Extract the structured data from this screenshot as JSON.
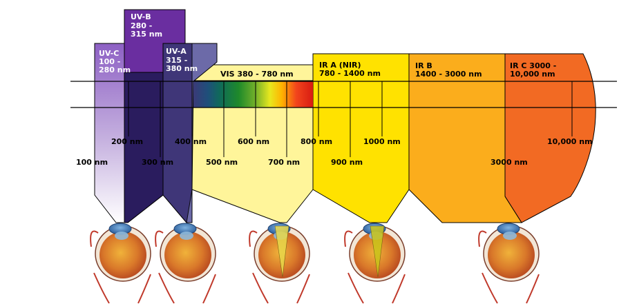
{
  "bands": {
    "uvc": {
      "name": "UV-C",
      "l1": "100 -",
      "l2": "280 nm"
    },
    "uvb": {
      "name": "UV-B",
      "l1": "280 -",
      "l2": "315 nm"
    },
    "uva": {
      "name": "UV-A",
      "l1": "315 -",
      "l2": "380 nm"
    },
    "vis": {
      "name": "VIS 380 - 780 nm"
    },
    "ira": {
      "name": "IR A (NIR)",
      "l2": "780 - 1400 nm"
    },
    "irb": {
      "name": "IR B",
      "l2": "1400 - 3000 nm"
    },
    "irc": {
      "name": "IR C 3000 -",
      "l2": "10,000 nm"
    }
  },
  "wavelengths": {
    "w100": "100 nm",
    "w200": "200 nm",
    "w300": "300 nm",
    "w400": "400 nm",
    "w500": "500 nm",
    "w600": "600 nm",
    "w700": "700 nm",
    "w800": "800 nm",
    "w900": "900 nm",
    "w1000": "1000 nm",
    "w3000": "3000 nm",
    "w10000": "10,000 nm"
  },
  "colors": {
    "uvc": "#8a5bbf",
    "uvb": "#6a2ea0",
    "uva": "#6c6aa8",
    "vis": "#fff59a",
    "ira": "#ffe200",
    "irb": "#fbad1c",
    "irc": "#f26a23"
  }
}
